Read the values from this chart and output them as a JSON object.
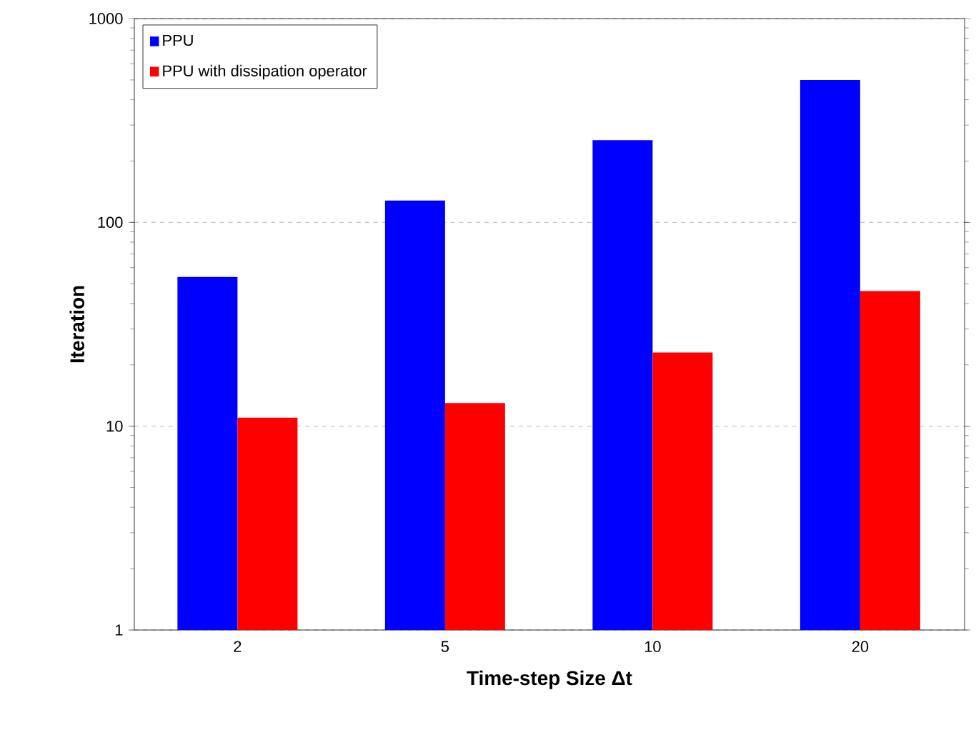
{
  "chart_data": {
    "type": "bar",
    "xlabel": "Time-step Size Δt",
    "ylabel": "Iteration",
    "categories": [
      "2",
      "5",
      "10",
      "20"
    ],
    "series": [
      {
        "name": "PPU",
        "color": "#0000ff",
        "values": [
          54,
          128,
          253,
          500
        ]
      },
      {
        "name": "PPU with dissipation operator",
        "color": "#ff0000",
        "values": [
          11,
          13,
          23,
          46
        ]
      }
    ],
    "log": true,
    "ylim": [
      1,
      1000
    ],
    "yticks": [
      1,
      10,
      100,
      1000
    ],
    "grid": "y",
    "legend": "top left"
  }
}
